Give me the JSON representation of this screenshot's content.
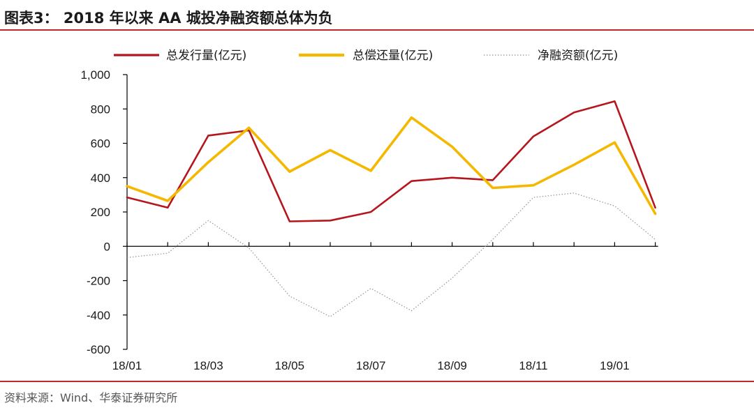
{
  "header": {
    "title": "图表3：  2018 年以来 AA 城投净融资额总体为负"
  },
  "footer": {
    "source": "资料来源：Wind、华泰证券研究所"
  },
  "colors": {
    "accent_rule": "#c0272d",
    "issuance": "#b5161e",
    "repayment": "#f5b800",
    "net": "#a09080"
  },
  "chart_data": {
    "type": "line",
    "title": "",
    "xlabel": "",
    "ylabel": "",
    "ylim": [
      -600,
      1000
    ],
    "yticks": [
      1000,
      800,
      600,
      400,
      200,
      0,
      -200,
      -400,
      -600
    ],
    "ytick_labels": [
      "1,000",
      "800",
      "600",
      "400",
      "200",
      "0",
      "-200",
      "-400",
      "-600"
    ],
    "x_tick_labels": [
      "18/01",
      "18/03",
      "18/05",
      "18/07",
      "18/09",
      "18/11",
      "19/01"
    ],
    "x": [
      "18/01",
      "18/02",
      "18/03",
      "18/04",
      "18/05",
      "18/06",
      "18/07",
      "18/08",
      "18/09",
      "18/10",
      "18/11",
      "18/12",
      "19/01",
      "19/02"
    ],
    "grid": false,
    "legend_position": "top",
    "series": [
      {
        "name": "总发行量(亿元)",
        "style": "solid",
        "values": [
          285,
          225,
          645,
          675,
          145,
          150,
          200,
          380,
          400,
          385,
          640,
          780,
          845,
          225
        ]
      },
      {
        "name": "总偿还量(亿元)",
        "style": "solid",
        "values": [
          350,
          265,
          490,
          690,
          435,
          560,
          440,
          750,
          580,
          340,
          355,
          475,
          605,
          190
        ]
      },
      {
        "name": "净融资额(亿元)",
        "style": "dotted",
        "values": [
          -65,
          -40,
          150,
          -10,
          -290,
          -410,
          -245,
          -375,
          -185,
          40,
          285,
          310,
          235,
          40
        ]
      }
    ]
  }
}
